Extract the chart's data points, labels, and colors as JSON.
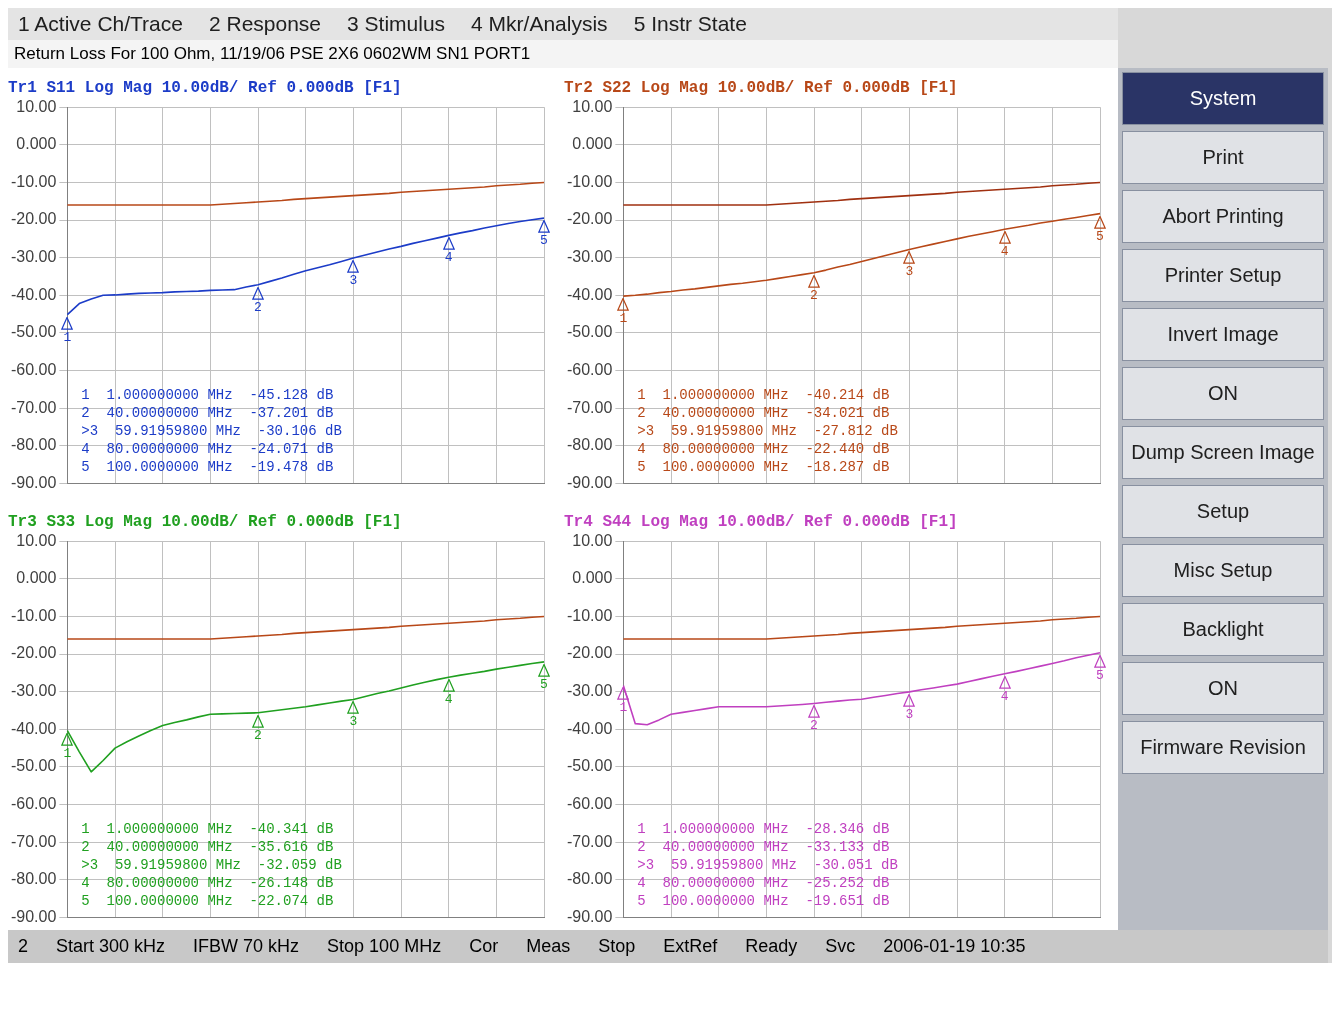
{
  "chart_data": [
    {
      "type": "other",
      "title": "Return Loss For 100 Ohm, 11/19/06 PSE 2X6 0602WM SN1 PORT1",
      "annotations": [
        "1 Active Ch/Trace",
        "2 Response",
        "3 Stimulus",
        "4 Mkr/Analysis",
        "5 Instr State"
      ]
    },
    {
      "type": "line",
      "title": "Tr1 S11 Log Mag 10.00dB/ Ref 0.000dB [F1]",
      "ylim": [
        -90,
        10
      ],
      "grid": true,
      "tick_labels": "y",
      "marker": "none",
      "line_style": "solid",
      "legend": false,
      "categories": [
        null,
        null,
        null,
        null,
        null,
        null,
        null,
        null,
        null,
        null,
        null,
        null,
        null,
        null,
        null,
        null,
        null,
        null,
        null,
        null,
        null,
        null,
        null,
        null,
        null,
        null,
        null,
        null,
        null,
        null,
        null,
        null,
        null,
        null,
        null,
        null,
        null,
        null,
        null,
        null,
        null
      ],
      "yticks": [
        {
          "value": 10,
          "label": "10.00"
        },
        {
          "value": 0,
          "label": "0.000"
        },
        {
          "value": -10,
          "label": "-10.00"
        },
        {
          "value": -20,
          "label": "-20.00"
        },
        {
          "value": -30,
          "label": "-30.00"
        },
        {
          "value": -40,
          "label": "-40.00"
        },
        {
          "value": -50,
          "label": "-50.00"
        },
        {
          "value": -60,
          "label": "-60.00"
        },
        {
          "value": -70,
          "label": "-70.00"
        },
        {
          "value": -80,
          "label": "-80.00"
        },
        {
          "value": -90,
          "label": "-90.00"
        }
      ],
      "series": [
        {
          "color": "#1c3cc8",
          "values": [
            -45.128,
            -42.2,
            -41,
            -40,
            -39.9,
            -39.7,
            -39.5,
            -39.4,
            -39.3,
            -39.1,
            -39,
            -38.9,
            -38.7,
            -38.6,
            -38.5,
            -37.8,
            -37.201,
            -36.3,
            -35.4,
            -34.4,
            -33.5,
            -32.7,
            -31.9,
            -31,
            -30.106,
            -29.3,
            -28.5,
            -27.7,
            -27,
            -26.2,
            -25.5,
            -24.8,
            -24.071,
            -23.4,
            -22.8,
            -22.1,
            -21.5,
            -20.9,
            -20.4,
            -19.9,
            -19.478
          ]
        },
        {
          "type": "line",
          "color": "#b84818",
          "values": [
            -16,
            -16,
            -16,
            -16,
            -16,
            -16,
            -16,
            -16,
            -16,
            -16,
            -16,
            -16,
            -16,
            -15.8,
            -15.6,
            -15.4,
            -15.2,
            -15,
            -14.8,
            -14.5,
            -14.3,
            -14.1,
            -13.9,
            -13.7,
            -13.5,
            -13.3,
            -13.1,
            -12.9,
            -12.6,
            -12.4,
            -12.2,
            -12,
            -11.8,
            -11.6,
            -11.4,
            -11.2,
            -10.9,
            -10.7,
            -10.5,
            -10.2,
            -10
          ]
        }
      ],
      "annotations": [
        "1  1.000000000 MHz  -45.128 dB",
        "2  40.00000000 MHz  -37.201 dB",
        ">3  59.91959800 MHz  -30.106 dB",
        "4  80.00000000 MHz  -24.071 dB",
        "5  100.0000000 MHz  -19.478 dB",
        {
          "text": "1",
          "y": -45.128
        },
        {
          "text": "2",
          "y": -37.201
        },
        {
          "text": "3",
          "y": -30.106
        },
        {
          "text": "4",
          "y": -24.071
        },
        {
          "text": "5",
          "y": -19.478
        }
      ]
    },
    {
      "type": "line",
      "title": "Tr2 S22 Log Mag 10.00dB/ Ref 0.000dB [F1]",
      "ylim": [
        -90,
        10
      ],
      "grid": true,
      "tick_labels": "y",
      "marker": "none",
      "line_style": "solid",
      "legend": false,
      "categories": [
        null,
        null,
        null,
        null,
        null,
        null,
        null,
        null,
        null,
        null,
        null,
        null,
        null,
        null,
        null,
        null,
        null,
        null,
        null,
        null,
        null,
        null,
        null,
        null,
        null,
        null,
        null,
        null,
        null,
        null,
        null,
        null,
        null,
        null,
        null,
        null,
        null,
        null,
        null,
        null,
        null
      ],
      "yticks": [
        {
          "value": 10,
          "label": "10.00"
        },
        {
          "value": 0,
          "label": "0.000"
        },
        {
          "value": -10,
          "label": "-10.00"
        },
        {
          "value": -20,
          "label": "-20.00"
        },
        {
          "value": -30,
          "label": "-30.00"
        },
        {
          "value": -40,
          "label": "-40.00"
        },
        {
          "value": -50,
          "label": "-50.00"
        },
        {
          "value": -60,
          "label": "-60.00"
        },
        {
          "value": -70,
          "label": "-70.00"
        },
        {
          "value": -80,
          "label": "-80.00"
        },
        {
          "value": -90,
          "label": "-90.00"
        }
      ],
      "series": [
        {
          "color": "#b84818",
          "values": [
            -40.214,
            -40,
            -39.7,
            -39.3,
            -39,
            -38.6,
            -38.3,
            -37.9,
            -37.5,
            -37.1,
            -36.8,
            -36.4,
            -36,
            -35.5,
            -35,
            -34.5,
            -34.021,
            -33.3,
            -32.5,
            -31.8,
            -31,
            -30.2,
            -29.4,
            -28.6,
            -27.812,
            -27.1,
            -26.4,
            -25.7,
            -25,
            -24.3,
            -23.7,
            -23.1,
            -22.44,
            -21.9,
            -21.4,
            -20.8,
            -20.3,
            -19.8,
            -19.3,
            -18.8,
            -18.287
          ]
        },
        {
          "type": "line",
          "color": "#a03010",
          "values": [
            -16,
            -16,
            -16,
            -16,
            -16,
            -16,
            -16,
            -16,
            -16,
            -16,
            -16,
            -16,
            -16,
            -15.8,
            -15.6,
            -15.4,
            -15.2,
            -15,
            -14.8,
            -14.5,
            -14.3,
            -14.1,
            -13.9,
            -13.7,
            -13.5,
            -13.3,
            -13.1,
            -12.9,
            -12.6,
            -12.4,
            -12.2,
            -12,
            -11.8,
            -11.6,
            -11.4,
            -11.2,
            -10.9,
            -10.7,
            -10.5,
            -10.2,
            -10
          ]
        }
      ],
      "annotations": [
        "1  1.000000000 MHz  -40.214 dB",
        "2  40.00000000 MHz  -34.021 dB",
        ">3  59.91959800 MHz  -27.812 dB",
        "4  80.00000000 MHz  -22.440 dB",
        "5  100.0000000 MHz  -18.287 dB",
        {
          "text": "1",
          "y": -40.214
        },
        {
          "text": "2",
          "y": -34.021
        },
        {
          "text": "3",
          "y": -27.812
        },
        {
          "text": "4",
          "y": -22.44
        },
        {
          "text": "5",
          "y": -18.287
        }
      ]
    },
    {
      "type": "line",
      "title": "Tr3 S33 Log Mag 10.00dB/ Ref 0.000dB [F1]",
      "ylim": [
        -90,
        10
      ],
      "grid": true,
      "tick_labels": "y",
      "marker": "none",
      "line_style": "solid",
      "legend": false,
      "categories": [
        null,
        null,
        null,
        null,
        null,
        null,
        null,
        null,
        null,
        null,
        null,
        null,
        null,
        null,
        null,
        null,
        null,
        null,
        null,
        null,
        null,
        null,
        null,
        null,
        null,
        null,
        null,
        null,
        null,
        null,
        null,
        null,
        null,
        null,
        null,
        null,
        null,
        null,
        null,
        null,
        null
      ],
      "yticks": [
        {
          "value": 10,
          "label": "10.00"
        },
        {
          "value": 0,
          "label": "0.000"
        },
        {
          "value": -10,
          "label": "-10.00"
        },
        {
          "value": -20,
          "label": "-20.00"
        },
        {
          "value": -30,
          "label": "-30.00"
        },
        {
          "value": -40,
          "label": "-40.00"
        },
        {
          "value": -50,
          "label": "-50.00"
        },
        {
          "value": -60,
          "label": "-60.00"
        },
        {
          "value": -70,
          "label": "-70.00"
        },
        {
          "value": -80,
          "label": "-80.00"
        },
        {
          "value": -90,
          "label": "-90.00"
        }
      ],
      "series": [
        {
          "color": "#20a020",
          "values": [
            -40.341,
            -46,
            -51.3,
            -48.3,
            -45,
            -43.3,
            -41.8,
            -40.3,
            -39,
            -38.2,
            -37.5,
            -36.7,
            -36,
            -35.9,
            -35.8,
            -35.7,
            -35.616,
            -35.2,
            -34.8,
            -34.4,
            -34,
            -33.5,
            -33,
            -32.5,
            -32.059,
            -31.3,
            -30.5,
            -29.8,
            -29,
            -28.2,
            -27.5,
            -26.8,
            -26.148,
            -25.6,
            -25.1,
            -24.6,
            -24,
            -23.5,
            -23,
            -22.5,
            -22.074
          ]
        },
        {
          "type": "line",
          "color": "#b84818",
          "values": [
            -16,
            -16,
            -16,
            -16,
            -16,
            -16,
            -16,
            -16,
            -16,
            -16,
            -16,
            -16,
            -16,
            -15.8,
            -15.6,
            -15.4,
            -15.2,
            -15,
            -14.8,
            -14.5,
            -14.3,
            -14.1,
            -13.9,
            -13.7,
            -13.5,
            -13.3,
            -13.1,
            -12.9,
            -12.6,
            -12.4,
            -12.2,
            -12,
            -11.8,
            -11.6,
            -11.4,
            -11.2,
            -10.9,
            -10.7,
            -10.5,
            -10.2,
            -10
          ]
        }
      ],
      "annotations": [
        "1  1.000000000 MHz  -40.341 dB",
        "2  40.00000000 MHz  -35.616 dB",
        ">3  59.91959800 MHz  -32.059 dB",
        "4  80.00000000 MHz  -26.148 dB",
        "5  100.0000000 MHz  -22.074 dB",
        {
          "text": "1",
          "y": -40.341
        },
        {
          "text": "2",
          "y": -35.616
        },
        {
          "text": "3",
          "y": -32.059
        },
        {
          "text": "4",
          "y": -26.148
        },
        {
          "text": "5",
          "y": -22.074
        }
      ]
    },
    {
      "type": "line",
      "title": "Tr4 S44 Log Mag 10.00dB/ Ref 0.000dB [F1]",
      "ylim": [
        -90,
        10
      ],
      "grid": true,
      "tick_labels": "y",
      "marker": "none",
      "line_style": "solid",
      "legend": false,
      "categories": [
        null,
        null,
        null,
        null,
        null,
        null,
        null,
        null,
        null,
        null,
        null,
        null,
        null,
        null,
        null,
        null,
        null,
        null,
        null,
        null,
        null,
        null,
        null,
        null,
        null,
        null,
        null,
        null,
        null,
        null,
        null,
        null,
        null,
        null,
        null,
        null,
        null,
        null,
        null,
        null,
        null
      ],
      "yticks": [
        {
          "value": 10,
          "label": "10.00"
        },
        {
          "value": 0,
          "label": "0.000"
        },
        {
          "value": -10,
          "label": "-10.00"
        },
        {
          "value": -20,
          "label": "-20.00"
        },
        {
          "value": -30,
          "label": "-30.00"
        },
        {
          "value": -40,
          "label": "-40.00"
        },
        {
          "value": -50,
          "label": "-50.00"
        },
        {
          "value": -60,
          "label": "-60.00"
        },
        {
          "value": -70,
          "label": "-70.00"
        },
        {
          "value": -80,
          "label": "-80.00"
        },
        {
          "value": -90,
          "label": "-90.00"
        }
      ],
      "series": [
        {
          "color": "#c040c0",
          "values": [
            -28.346,
            -38.5,
            -38.8,
            -37.5,
            -36,
            -35.5,
            -35,
            -34.5,
            -34,
            -34,
            -34,
            -34,
            -34,
            -33.8,
            -33.6,
            -33.4,
            -33.133,
            -32.8,
            -32.5,
            -32.2,
            -32,
            -31.5,
            -31,
            -30.5,
            -30.051,
            -29.5,
            -29,
            -28.5,
            -28,
            -27.3,
            -26.6,
            -25.9,
            -25.252,
            -24.6,
            -23.9,
            -23.2,
            -22.5,
            -21.8,
            -21,
            -20.3,
            -19.651
          ]
        },
        {
          "type": "line",
          "color": "#b84818",
          "values": [
            -16,
            -16,
            -16,
            -16,
            -16,
            -16,
            -16,
            -16,
            -16,
            -16,
            -16,
            -16,
            -16,
            -15.8,
            -15.6,
            -15.4,
            -15.2,
            -15,
            -14.8,
            -14.5,
            -14.3,
            -14.1,
            -13.9,
            -13.7,
            -13.5,
            -13.3,
            -13.1,
            -12.9,
            -12.6,
            -12.4,
            -12.2,
            -12,
            -11.8,
            -11.6,
            -11.4,
            -11.2,
            -10.9,
            -10.7,
            -10.5,
            -10.2,
            -10
          ]
        }
      ],
      "annotations": [
        "1  1.000000000 MHz  -28.346 dB",
        "2  40.00000000 MHz  -33.133 dB",
        ">3  59.91959800 MHz  -30.051 dB",
        "4  80.00000000 MHz  -25.252 dB",
        "5  100.0000000 MHz  -19.651 dB",
        {
          "text": "1",
          "y": -28.346
        },
        {
          "text": "2",
          "y": -33.133
        },
        {
          "text": "3",
          "y": -30.051
        },
        {
          "text": "4",
          "y": -25.252
        },
        {
          "text": "5",
          "y": -19.651
        }
      ]
    },
    {
      "type": "other",
      "annotations": [
        "System",
        "Print",
        "Abort Printing",
        "Printer Setup",
        "Invert Image",
        "ON",
        "Dump Screen Image",
        "Setup",
        "Misc Setup",
        "Backlight",
        "ON",
        "Firmware Revision"
      ]
    },
    {
      "type": "other",
      "annotations": [
        "2",
        "Start 300 kHz",
        "IFBW 70 kHz",
        "Stop 100 MHz",
        "Cor",
        "Meas",
        "Stop",
        "ExtRef",
        "Ready",
        "Svc",
        "2006-01-19 10:35"
      ]
    }
  ]
}
